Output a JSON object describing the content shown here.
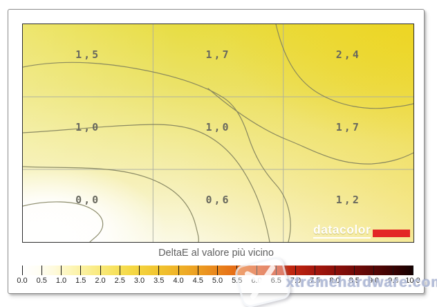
{
  "chart_data": {
    "type": "heatmap",
    "title": "DeltaE al valore più vicino",
    "grid": {
      "rows": 3,
      "cols": 3,
      "gridlines": true
    },
    "values": [
      [
        1.5,
        1.7,
        2.4
      ],
      [
        1.0,
        1.0,
        1.7
      ],
      [
        0.0,
        0.6,
        1.2
      ]
    ],
    "value_labels": [
      [
        "1,5",
        "1,7",
        "2,4"
      ],
      [
        "1,0",
        "1,0",
        "1,7"
      ],
      [
        "0,0",
        "0,6",
        "1,2"
      ]
    ],
    "colorbar": {
      "label": "DeltaE al valore più vicino",
      "min": 0.0,
      "max": 10.0,
      "step": 0.5,
      "tick_labels": [
        "0.0",
        "0.5",
        "1.0",
        "1.5",
        "2.0",
        "2.5",
        "3.0",
        "3.5",
        "4.0",
        "4.5",
        "5.0",
        "5.5",
        "6.0",
        "6.5",
        "7.0",
        "7.5",
        "8.0",
        "8.5",
        "9.0",
        "9.5",
        "10.0"
      ],
      "gradient_stops": [
        "#ffffff",
        "#fdf6bc",
        "#f9e97b",
        "#f5d844",
        "#efb228",
        "#e9851c",
        "#dc4e11",
        "#bc2310",
        "#8d100a",
        "#570706",
        "#150101"
      ]
    }
  },
  "branding": {
    "logo_text": "datacolor",
    "logo_bar_color": "#e32726"
  },
  "watermark": {
    "text": "xtremehardware.com",
    "icon": "x-logo"
  },
  "colors": {
    "contour_line": "#7f7f5c",
    "grid_line": "#aaada1",
    "cell_label": "#68685e",
    "caption": "#5f5f5f",
    "tick_label": "#222222",
    "watermark_text": "#aeb8d6",
    "heat_low": "#ffffff",
    "heat_mid": "#f1ea92",
    "heat_high": "#eedc2c"
  }
}
